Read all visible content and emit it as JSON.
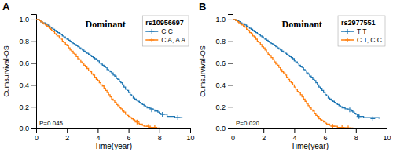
{
  "chart_data": [
    {
      "type": "step",
      "panel_label": "A",
      "title": "rs10956697",
      "subtitle": "Dominant",
      "annotation": "P=0.045",
      "x_label": "Time(year)",
      "y_label": "Cumsurvival-OS",
      "xlim": [
        0,
        10
      ],
      "ylim": [
        0.0,
        1.05
      ],
      "xticks": [
        0,
        2,
        4,
        6,
        8,
        10
      ],
      "yticks": [
        {
          "value": 0.0,
          "label": "0.0"
        },
        0.2,
        0.4,
        0.6,
        0.8,
        {
          "value": 1.0,
          "label": "1.0"
        }
      ],
      "grid": false,
      "legend": "upper right",
      "marker": "plus",
      "series": [
        {
          "name": "C C",
          "x": [
            0,
            0.1,
            0.2,
            0.3,
            0.4,
            0.5,
            0.6,
            0.7,
            0.75,
            0.8,
            0.85,
            0.9,
            0.95,
            1.0,
            1.1,
            1.15,
            1.2,
            1.3,
            1.4,
            1.45,
            1.5,
            1.6,
            1.7,
            1.8,
            1.85,
            1.9,
            2.0,
            2.1,
            2.2,
            2.3,
            2.4,
            2.5,
            2.6,
            2.65,
            2.7,
            2.8,
            2.9,
            3.0,
            3.1,
            3.2,
            3.3,
            3.4,
            3.5,
            3.6,
            3.7,
            3.8,
            3.9,
            4.0,
            4.1,
            4.2,
            4.3,
            4.35,
            4.4,
            4.5,
            4.6,
            4.7,
            4.8,
            4.9,
            5.0,
            5.1,
            5.2,
            5.3,
            5.4,
            5.5,
            5.6,
            5.7,
            5.8,
            5.9,
            6.0,
            6.1,
            6.2,
            6.3,
            6.4,
            6.5,
            6.6,
            6.7,
            6.8,
            6.9,
            7.0,
            7.1,
            7.2,
            7.3,
            7.4,
            7.5,
            7.6,
            7.7,
            7.8,
            7.9,
            8.0,
            8.1,
            8.2,
            8.5,
            9.0,
            9.5
          ],
          "values": [
            1.0,
            1.0,
            0.99,
            0.98,
            0.97,
            0.97,
            0.96,
            0.95,
            0.95,
            0.94,
            0.94,
            0.93,
            0.93,
            0.92,
            0.91,
            0.91,
            0.9,
            0.89,
            0.88,
            0.88,
            0.87,
            0.86,
            0.85,
            0.84,
            0.84,
            0.83,
            0.82,
            0.81,
            0.8,
            0.79,
            0.78,
            0.77,
            0.76,
            0.76,
            0.75,
            0.74,
            0.73,
            0.72,
            0.71,
            0.7,
            0.69,
            0.68,
            0.67,
            0.66,
            0.65,
            0.64,
            0.63,
            0.62,
            0.6,
            0.59,
            0.58,
            0.58,
            0.57,
            0.56,
            0.54,
            0.53,
            0.52,
            0.51,
            0.49,
            0.48,
            0.46,
            0.45,
            0.43,
            0.42,
            0.4,
            0.38,
            0.36,
            0.35,
            0.33,
            0.31,
            0.3,
            0.28,
            0.27,
            0.26,
            0.25,
            0.24,
            0.23,
            0.22,
            0.21,
            0.2,
            0.19,
            0.19,
            0.18,
            0.18,
            0.17,
            0.16,
            0.16,
            0.15,
            0.14,
            0.13,
            0.13,
            0.11,
            0.1,
            0.1
          ],
          "censored_x": [
            7.5,
            8.2,
            9.2
          ],
          "censored_values": [
            0.17,
            0.13,
            0.1
          ]
        },
        {
          "name": "C A, A A",
          "x": [
            0,
            0.1,
            0.2,
            0.3,
            0.4,
            0.5,
            0.55,
            0.6,
            0.65,
            0.7,
            0.8,
            0.85,
            0.9,
            0.95,
            1.0,
            1.1,
            1.2,
            1.3,
            1.35,
            1.4,
            1.5,
            1.6,
            1.7,
            1.8,
            1.9,
            2.0,
            2.1,
            2.2,
            2.3,
            2.4,
            2.5,
            2.6,
            2.7,
            2.8,
            2.9,
            3.0,
            3.1,
            3.2,
            3.3,
            3.4,
            3.5,
            3.6,
            3.7,
            3.8,
            3.9,
            4.0,
            4.1,
            4.2,
            4.3,
            4.4,
            4.5,
            4.6,
            4.7,
            4.8,
            4.9,
            5.0,
            5.1,
            5.2,
            5.3,
            5.4,
            5.5,
            5.6,
            5.7,
            5.8,
            5.9,
            6.0,
            6.1,
            6.2,
            6.3,
            6.4,
            6.5,
            6.55,
            6.6,
            6.7,
            6.75,
            6.8,
            6.9,
            7.0,
            7.1,
            7.2,
            7.3,
            7.4,
            7.5,
            7.6,
            7.65,
            7.7,
            7.8,
            7.9,
            8.0,
            8.1,
            8.3
          ],
          "values": [
            1.0,
            1.0,
            0.99,
            0.98,
            0.97,
            0.96,
            0.96,
            0.95,
            0.95,
            0.94,
            0.93,
            0.92,
            0.92,
            0.91,
            0.9,
            0.89,
            0.87,
            0.86,
            0.85,
            0.85,
            0.83,
            0.82,
            0.8,
            0.79,
            0.77,
            0.76,
            0.74,
            0.72,
            0.71,
            0.69,
            0.68,
            0.66,
            0.64,
            0.63,
            0.61,
            0.6,
            0.58,
            0.57,
            0.55,
            0.53,
            0.52,
            0.5,
            0.49,
            0.47,
            0.45,
            0.44,
            0.42,
            0.4,
            0.39,
            0.37,
            0.35,
            0.33,
            0.31,
            0.29,
            0.27,
            0.26,
            0.24,
            0.22,
            0.21,
            0.19,
            0.18,
            0.16,
            0.15,
            0.13,
            0.12,
            0.11,
            0.1,
            0.09,
            0.08,
            0.07,
            0.06,
            0.06,
            0.05,
            0.04,
            0.04,
            0.04,
            0.03,
            0.02,
            0.02,
            0.02,
            0.01,
            0.01,
            0.01,
            0.01,
            0.01,
            0.01,
            0.005,
            0.005,
            0.003,
            0.002,
            0.0
          ],
          "censored_x": [
            6.55,
            7.3,
            7.7
          ],
          "censored_values": [
            0.06,
            0.02,
            0.01
          ]
        }
      ]
    },
    {
      "type": "step",
      "panel_label": "B",
      "title": "rs2977551",
      "subtitle": "Dominant",
      "annotation": "P=0.020",
      "x_label": "Time(year)",
      "y_label": "Cumsurvival-OS",
      "xlim": [
        0,
        10
      ],
      "ylim": [
        0.0,
        1.05
      ],
      "xticks": [
        0,
        2,
        4,
        6,
        8,
        10
      ],
      "yticks": [
        {
          "value": 0.0,
          "label": "0.0"
        },
        0.2,
        0.4,
        0.6,
        0.8,
        {
          "value": 1.0,
          "label": "1.0"
        }
      ],
      "grid": false,
      "legend": "upper right",
      "marker": "plus",
      "series": [
        {
          "name": "T T",
          "x": [
            0,
            0.1,
            0.2,
            0.3,
            0.4,
            0.5,
            0.6,
            0.7,
            0.8,
            0.9,
            1.0,
            1.1,
            1.2,
            1.3,
            1.4,
            1.5,
            1.6,
            1.7,
            1.8,
            1.9,
            2.0,
            2.1,
            2.2,
            2.3,
            2.4,
            2.5,
            2.6,
            2.7,
            2.8,
            2.9,
            3.0,
            3.1,
            3.2,
            3.3,
            3.4,
            3.5,
            3.6,
            3.7,
            3.8,
            3.9,
            4.0,
            4.1,
            4.2,
            4.3,
            4.4,
            4.5,
            4.6,
            4.7,
            4.8,
            4.9,
            5.0,
            5.1,
            5.2,
            5.3,
            5.4,
            5.5,
            5.6,
            5.7,
            5.8,
            5.9,
            6.0,
            6.1,
            6.2,
            6.3,
            6.4,
            6.5,
            6.6,
            6.7,
            6.8,
            6.9,
            7.0,
            7.1,
            7.2,
            7.3,
            7.4,
            7.5,
            7.6,
            7.7,
            7.8,
            7.9,
            8.0,
            8.1,
            8.2,
            8.5,
            9.0,
            9.5
          ],
          "values": [
            1.0,
            1.0,
            0.99,
            0.99,
            0.98,
            0.97,
            0.96,
            0.96,
            0.95,
            0.94,
            0.93,
            0.92,
            0.91,
            0.9,
            0.89,
            0.88,
            0.87,
            0.86,
            0.85,
            0.84,
            0.83,
            0.82,
            0.81,
            0.8,
            0.79,
            0.78,
            0.77,
            0.76,
            0.75,
            0.74,
            0.73,
            0.72,
            0.71,
            0.7,
            0.69,
            0.68,
            0.67,
            0.66,
            0.65,
            0.64,
            0.62,
            0.61,
            0.6,
            0.58,
            0.57,
            0.56,
            0.54,
            0.53,
            0.51,
            0.5,
            0.48,
            0.47,
            0.45,
            0.44,
            0.42,
            0.4,
            0.38,
            0.37,
            0.35,
            0.33,
            0.31,
            0.3,
            0.28,
            0.27,
            0.26,
            0.25,
            0.24,
            0.23,
            0.22,
            0.21,
            0.2,
            0.19,
            0.19,
            0.18,
            0.18,
            0.17,
            0.17,
            0.16,
            0.15,
            0.14,
            0.13,
            0.12,
            0.11,
            0.1,
            0.1,
            0.09
          ],
          "censored_x": [
            7.6,
            8.2,
            9.1
          ],
          "censored_values": [
            0.17,
            0.11,
            0.09
          ]
        },
        {
          "name": "C T, C C",
          "x": [
            0,
            0.1,
            0.2,
            0.3,
            0.4,
            0.5,
            0.6,
            0.7,
            0.8,
            0.9,
            1.0,
            1.1,
            1.2,
            1.3,
            1.4,
            1.5,
            1.6,
            1.7,
            1.8,
            1.9,
            2.0,
            2.1,
            2.2,
            2.3,
            2.4,
            2.5,
            2.6,
            2.7,
            2.8,
            2.9,
            3.0,
            3.1,
            3.2,
            3.3,
            3.4,
            3.5,
            3.6,
            3.7,
            3.8,
            3.9,
            4.0,
            4.1,
            4.2,
            4.3,
            4.4,
            4.5,
            4.6,
            4.7,
            4.8,
            4.9,
            5.0,
            5.1,
            5.2,
            5.3,
            5.4,
            5.5,
            5.6,
            5.7,
            5.8,
            5.9,
            6.0,
            6.1,
            6.2,
            6.3,
            6.4,
            6.5,
            6.6,
            6.7,
            6.8,
            6.9,
            7.0,
            7.1,
            7.2,
            7.3,
            7.4,
            7.5,
            7.6,
            7.7,
            7.8,
            7.9,
            8.0,
            8.2
          ],
          "values": [
            1.0,
            1.0,
            0.99,
            0.98,
            0.97,
            0.96,
            0.95,
            0.94,
            0.93,
            0.91,
            0.9,
            0.88,
            0.87,
            0.85,
            0.84,
            0.82,
            0.8,
            0.79,
            0.77,
            0.75,
            0.74,
            0.72,
            0.7,
            0.68,
            0.67,
            0.65,
            0.63,
            0.61,
            0.59,
            0.58,
            0.56,
            0.54,
            0.52,
            0.51,
            0.49,
            0.47,
            0.45,
            0.43,
            0.42,
            0.4,
            0.38,
            0.36,
            0.34,
            0.33,
            0.31,
            0.29,
            0.27,
            0.25,
            0.23,
            0.21,
            0.19,
            0.17,
            0.16,
            0.14,
            0.12,
            0.11,
            0.09,
            0.08,
            0.07,
            0.06,
            0.05,
            0.04,
            0.04,
            0.03,
            0.03,
            0.02,
            0.02,
            0.02,
            0.01,
            0.01,
            0.01,
            0.01,
            0.008,
            0.007,
            0.006,
            0.005,
            0.005,
            0.004,
            0.003,
            0.002,
            0.001,
            0.0
          ],
          "censored_x": [
            6.5,
            7.1,
            7.5
          ],
          "censored_values": [
            0.02,
            0.01,
            0.005
          ]
        }
      ]
    }
  ]
}
